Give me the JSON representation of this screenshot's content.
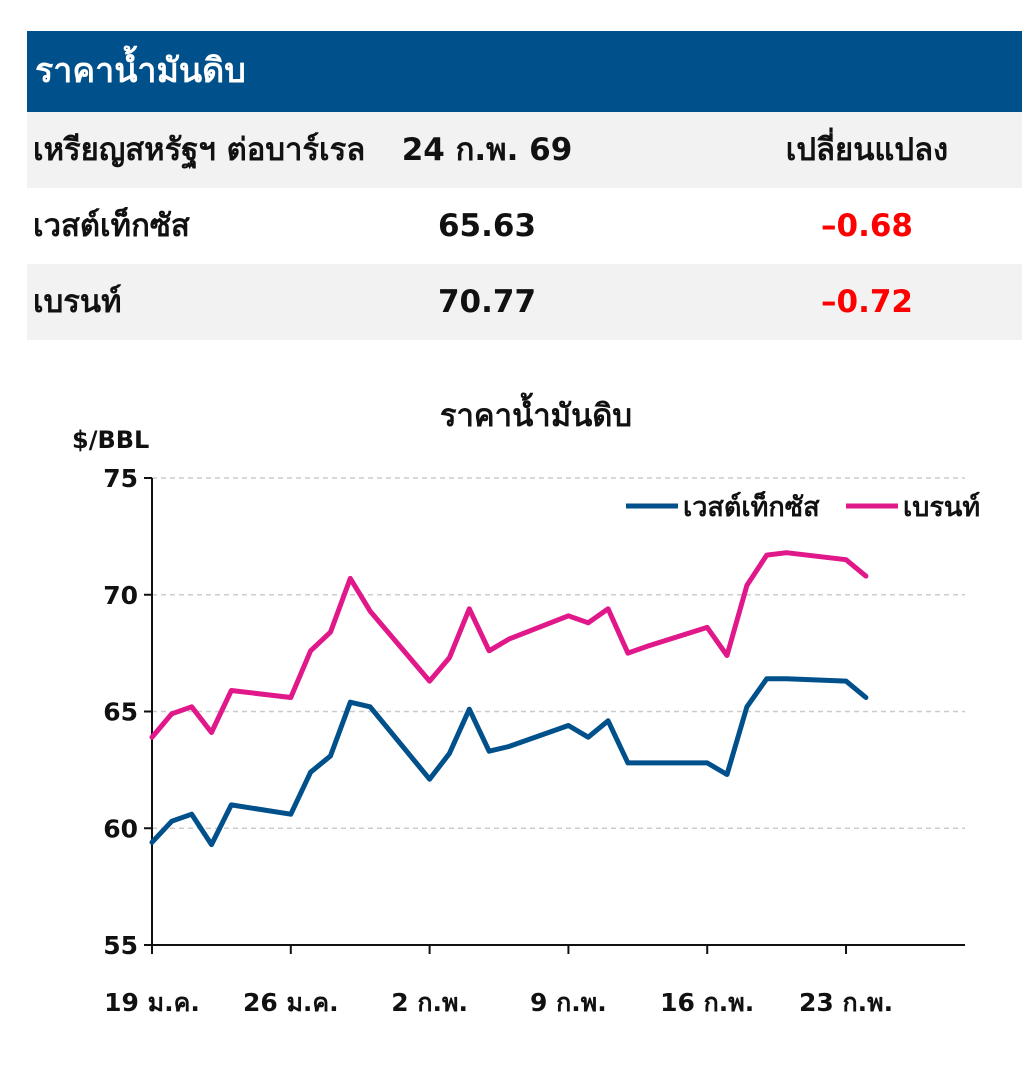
{
  "table": {
    "title": "ราคาน้ำมันดิบ",
    "header": {
      "label": "เหรียญสหรัฐฯ ต่อบาร์เรล",
      "date": "24 ก.พ. 69",
      "change": "เปลี่ยนแปลง"
    },
    "rows": [
      {
        "name": "เวสต์เท็กซัส",
        "price": "65.63",
        "change": "-0.68"
      },
      {
        "name": "เบรนท์",
        "price": "70.77",
        "change": "-0.72"
      }
    ],
    "negative_color": "#ff0000",
    "title_bg": "#00508b"
  },
  "chart_data": {
    "type": "line",
    "title": "ราคาน้ำมันดิบ",
    "ylabel": "$/BBL",
    "xlabel": "",
    "ylim": [
      55,
      75
    ],
    "yticks": [
      55,
      60,
      65,
      70,
      75
    ],
    "xlim": [
      "2026-01-19",
      "2026-03-01"
    ],
    "xticks": [
      {
        "date": "2026-01-19",
        "label": "19 ม.ค."
      },
      {
        "date": "2026-01-26",
        "label": "26 ม.ค."
      },
      {
        "date": "2026-02-02",
        "label": "2 ก.พ."
      },
      {
        "date": "2026-02-09",
        "label": "9 ก.พ."
      },
      {
        "date": "2026-02-16",
        "label": "16 ก.พ."
      },
      {
        "date": "2026-02-23",
        "label": "23 ก.พ."
      }
    ],
    "grid": true,
    "legend": "top-right",
    "series": [
      {
        "name": "เวสต์เท็กซัส",
        "color": "#00508b",
        "points": [
          [
            "2026-01-19",
            59.4
          ],
          [
            "2026-01-20",
            60.3
          ],
          [
            "2026-01-21",
            60.6
          ],
          [
            "2026-01-22",
            59.3
          ],
          [
            "2026-01-23",
            61.0
          ],
          [
            "2026-01-26",
            60.6
          ],
          [
            "2026-01-27",
            62.4
          ],
          [
            "2026-01-28",
            63.1
          ],
          [
            "2026-01-29",
            65.4
          ],
          [
            "2026-01-30",
            65.2
          ],
          [
            "2026-02-02",
            62.1
          ],
          [
            "2026-02-03",
            63.2
          ],
          [
            "2026-02-04",
            65.1
          ],
          [
            "2026-02-05",
            63.3
          ],
          [
            "2026-02-06",
            63.5
          ],
          [
            "2026-02-09",
            64.4
          ],
          [
            "2026-02-10",
            63.9
          ],
          [
            "2026-02-11",
            64.6
          ],
          [
            "2026-02-12",
            62.8
          ],
          [
            "2026-02-13",
            62.8
          ],
          [
            "2026-02-16",
            62.8
          ],
          [
            "2026-02-17",
            62.3
          ],
          [
            "2026-02-18",
            65.2
          ],
          [
            "2026-02-19",
            66.4
          ],
          [
            "2026-02-20",
            66.4
          ],
          [
            "2026-02-23",
            66.3
          ],
          [
            "2026-02-24",
            65.6
          ]
        ]
      },
      {
        "name": "เบรนท์",
        "color": "#e0188a",
        "points": [
          [
            "2026-01-19",
            63.9
          ],
          [
            "2026-01-20",
            64.9
          ],
          [
            "2026-01-21",
            65.2
          ],
          [
            "2026-01-22",
            64.1
          ],
          [
            "2026-01-23",
            65.9
          ],
          [
            "2026-01-26",
            65.6
          ],
          [
            "2026-01-27",
            67.6
          ],
          [
            "2026-01-28",
            68.4
          ],
          [
            "2026-01-29",
            70.7
          ],
          [
            "2026-01-30",
            69.3
          ],
          [
            "2026-02-02",
            66.3
          ],
          [
            "2026-02-03",
            67.3
          ],
          [
            "2026-02-04",
            69.4
          ],
          [
            "2026-02-05",
            67.6
          ],
          [
            "2026-02-06",
            68.1
          ],
          [
            "2026-02-09",
            69.1
          ],
          [
            "2026-02-10",
            68.8
          ],
          [
            "2026-02-11",
            69.4
          ],
          [
            "2026-02-12",
            67.5
          ],
          [
            "2026-02-13",
            67.8
          ],
          [
            "2026-02-16",
            68.6
          ],
          [
            "2026-02-17",
            67.4
          ],
          [
            "2026-02-18",
            70.4
          ],
          [
            "2026-02-19",
            71.7
          ],
          [
            "2026-02-20",
            71.8
          ],
          [
            "2026-02-23",
            71.5
          ],
          [
            "2026-02-24",
            70.8
          ]
        ]
      }
    ]
  }
}
